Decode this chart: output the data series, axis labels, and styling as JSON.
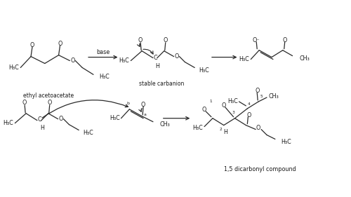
{
  "bg_color": "#ffffff",
  "figsize": [
    5.0,
    2.81
  ],
  "dpi": 100,
  "label_ethyl_acetoacetate": "ethyl acetoacetate",
  "label_stable_carbanion": "stable carbanion",
  "label_1_5_dicarbonyl": "1,5 dicarbonyl compound",
  "label_base": "base",
  "text_color": "#1a1a1a",
  "line_color": "#2a2a2a"
}
